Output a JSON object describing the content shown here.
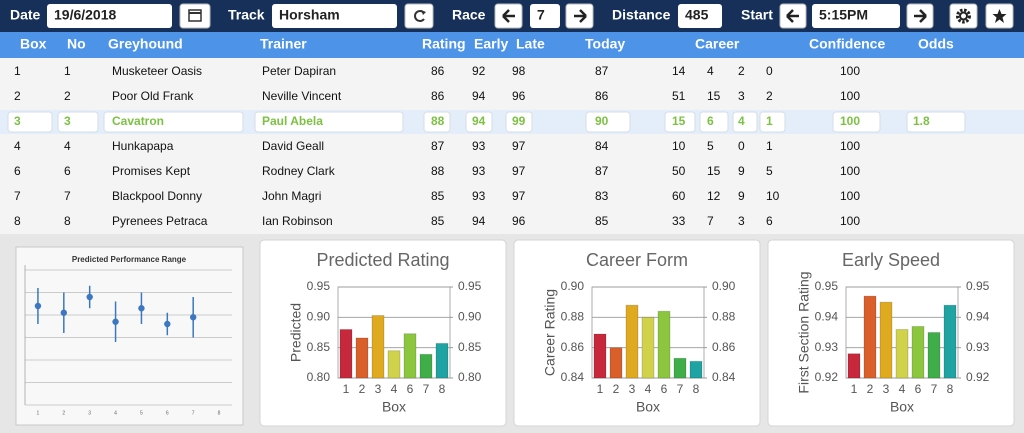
{
  "toolbar": {
    "date_label": "Date",
    "date": "19/6/2018",
    "track_label": "Track",
    "track": "Horsham",
    "race_label": "Race",
    "race": "7",
    "distance_label": "Distance",
    "distance": "485",
    "start_label": "Start",
    "start": "5:15PM"
  },
  "table": {
    "headers": [
      "Box",
      "No",
      "Greyhound",
      "Trainer",
      "Rating",
      "Early",
      "Late",
      "Today",
      "Career",
      "Confidence",
      "Odds"
    ],
    "rows": [
      {
        "cells": [
          1,
          1,
          "Musketeer Oasis",
          "Peter Dapiran",
          86,
          92,
          98,
          87,
          14,
          4,
          2,
          0,
          100
        ]
      },
      {
        "cells": [
          2,
          2,
          "Poor Old Frank",
          "Neville Vincent",
          86,
          94,
          96,
          86,
          51,
          15,
          3,
          2,
          100
        ]
      },
      {
        "cells": [
          3,
          3,
          "Cavatron",
          "Paul Abela",
          88,
          94,
          99,
          90,
          15,
          6,
          4,
          1,
          100,
          1.8
        ],
        "selected": true
      },
      {
        "cells": [
          4,
          4,
          "Hunkapapa",
          "David Geall",
          87,
          93,
          97,
          84,
          10,
          5,
          0,
          1,
          100
        ]
      },
      {
        "cells": [
          6,
          6,
          "Promises Kept",
          "Rodney Clark",
          88,
          93,
          97,
          87,
          50,
          15,
          9,
          5,
          100
        ]
      },
      {
        "cells": [
          7,
          7,
          "Blackpool Donny",
          "John Magri",
          85,
          93,
          97,
          83,
          60,
          12,
          9,
          10,
          100
        ]
      },
      {
        "cells": [
          8,
          8,
          "Pyrenees Petraca",
          "Ian Robinson",
          85,
          94,
          96,
          85,
          33,
          7,
          3,
          6,
          100
        ]
      }
    ]
  },
  "charts": [
    {
      "type": "errorbar",
      "title": "Predicted Performance Range",
      "x": [
        1,
        2,
        3,
        4,
        5,
        6,
        7
      ],
      "values": [
        4.4,
        4.1,
        4.8,
        3.7,
        4.3,
        3.6,
        3.9
      ],
      "errors": [
        0.8,
        0.9,
        0.5,
        0.9,
        0.7,
        0.5,
        0.9
      ],
      "color": "#3b78c0",
      "xlim": [
        0.5,
        8.5
      ],
      "xticks": [
        1,
        2,
        3,
        4,
        5,
        6,
        7,
        8
      ],
      "ylim": [
        0,
        6
      ],
      "yticks": [
        0,
        1,
        2,
        3,
        4,
        5,
        6
      ],
      "grid": true
    },
    {
      "type": "bar",
      "title": "Predicted Rating",
      "ylabel": "Predicted",
      "xlabel": "Box",
      "categories": [
        "1",
        "2",
        "3",
        "4",
        "6",
        "7",
        "8"
      ],
      "values": [
        0.88,
        0.866,
        0.903,
        0.845,
        0.873,
        0.839,
        0.857
      ],
      "colors": [
        "#c8283c",
        "#d9602a",
        "#e0aa20",
        "#cfd24a",
        "#8cc63f",
        "#3fae49",
        "#20a3a3"
      ],
      "ylim": [
        0.8,
        0.95
      ],
      "yticks": [
        {
          "value": 0.8,
          "label": "0.80"
        },
        0.85,
        {
          "value": 0.9,
          "label": "0.90"
        },
        0.95
      ],
      "y2lim": [
        0.8,
        0.95
      ],
      "y2ticks": [
        {
          "value": 0.8,
          "label": "0.80"
        },
        0.85,
        {
          "value": 0.9,
          "label": "0.90"
        },
        0.95
      ]
    },
    {
      "type": "bar",
      "title": "Career Form",
      "ylabel": "Career Rating",
      "xlabel": "Box",
      "categories": [
        "1",
        "2",
        "3",
        "4",
        "6",
        "7",
        "8"
      ],
      "values": [
        0.869,
        0.86,
        0.888,
        0.88,
        0.884,
        0.853,
        0.851
      ],
      "colors": [
        "#c8283c",
        "#d9602a",
        "#e0aa20",
        "#cfd24a",
        "#8cc63f",
        "#3fae49",
        "#20a3a3"
      ],
      "ylim": [
        0.84,
        0.9
      ],
      "yticks": [
        0.84,
        0.86,
        0.88,
        {
          "value": 0.9,
          "label": "0.90"
        }
      ],
      "y2lim": [
        0.84,
        0.9
      ],
      "y2ticks": [
        0.84,
        0.86,
        0.88,
        {
          "value": 0.9,
          "label": "0.90"
        }
      ]
    },
    {
      "type": "bar",
      "title": "Early Speed",
      "ylabel": "First Section Rating",
      "xlabel": "Box",
      "categories": [
        "1",
        "2",
        "3",
        "4",
        "6",
        "7",
        "8"
      ],
      "values": [
        0.928,
        0.947,
        0.945,
        0.936,
        0.937,
        0.935,
        0.944
      ],
      "colors": [
        "#c8283c",
        "#d9602a",
        "#e0aa20",
        "#cfd24a",
        "#8cc63f",
        "#3fae49",
        "#20a3a3"
      ],
      "ylim": [
        0.92,
        0.95
      ],
      "yticks": [
        0.92,
        0.93,
        0.94,
        0.95
      ],
      "y2lim": [
        0.92,
        0.95
      ],
      "y2ticks": [
        0.92,
        0.93,
        0.94,
        0.95
      ]
    }
  ]
}
